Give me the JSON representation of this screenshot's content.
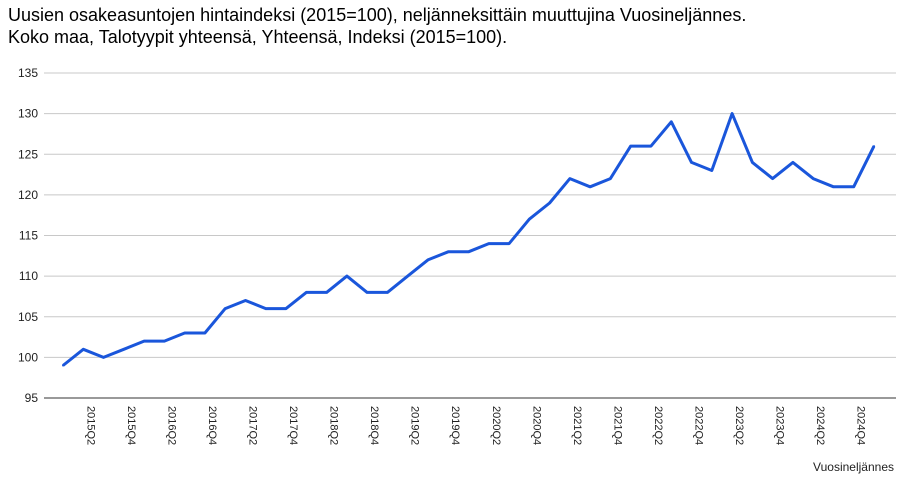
{
  "chart_data": {
    "type": "line",
    "title_line1": "Uusien osakeasuntojen hintaindeksi (2015=100), neljänneksittäin muuttujina Vuosineljännes.",
    "title_line2": "Koko maa, Talotyypit yhteensä, Yhteensä, Indeksi (2015=100).",
    "xlabel": "Vuosineljännes",
    "ylabel": "",
    "ylim": [
      95,
      135
    ],
    "yticks": [
      95,
      100,
      105,
      110,
      115,
      120,
      125,
      130,
      135
    ],
    "grid": true,
    "line_color": "#1a56db",
    "x": [
      "2015Q1",
      "2015Q2",
      "2015Q3",
      "2015Q4",
      "2016Q1",
      "2016Q2",
      "2016Q3",
      "2016Q4",
      "2017Q1",
      "2017Q2",
      "2017Q3",
      "2017Q4",
      "2018Q1",
      "2018Q2",
      "2018Q3",
      "2018Q4",
      "2019Q1",
      "2019Q2",
      "2019Q3",
      "2019Q4",
      "2020Q1",
      "2020Q2",
      "2020Q3",
      "2020Q4",
      "2021Q1",
      "2021Q2",
      "2021Q3",
      "2021Q4",
      "2022Q1",
      "2022Q2",
      "2022Q3",
      "2022Q4",
      "2023Q1",
      "2023Q2",
      "2023Q3",
      "2023Q4",
      "2024Q1",
      "2024Q2",
      "2024Q3",
      "2024Q4",
      "2025Q1"
    ],
    "x_tick_labels": [
      "2015Q2",
      "2015Q4",
      "2016Q2",
      "2016Q4",
      "2017Q2",
      "2017Q4",
      "2018Q2",
      "2018Q4",
      "2019Q2",
      "2019Q4",
      "2020Q2",
      "2020Q4",
      "2021Q2",
      "2021Q4",
      "2022Q2",
      "2022Q4",
      "2023Q2",
      "2023Q4",
      "2024Q2",
      "2024Q4"
    ],
    "series": [
      {
        "values": [
          99,
          101,
          100,
          101,
          102,
          102,
          103,
          103,
          106,
          107,
          106,
          106,
          108,
          108,
          110,
          108,
          108,
          110,
          112,
          113,
          113,
          114,
          114,
          117,
          119,
          122,
          121,
          122,
          126,
          126,
          129,
          124,
          123,
          130,
          124,
          122,
          124,
          122,
          121,
          121,
          126
        ]
      }
    ]
  }
}
